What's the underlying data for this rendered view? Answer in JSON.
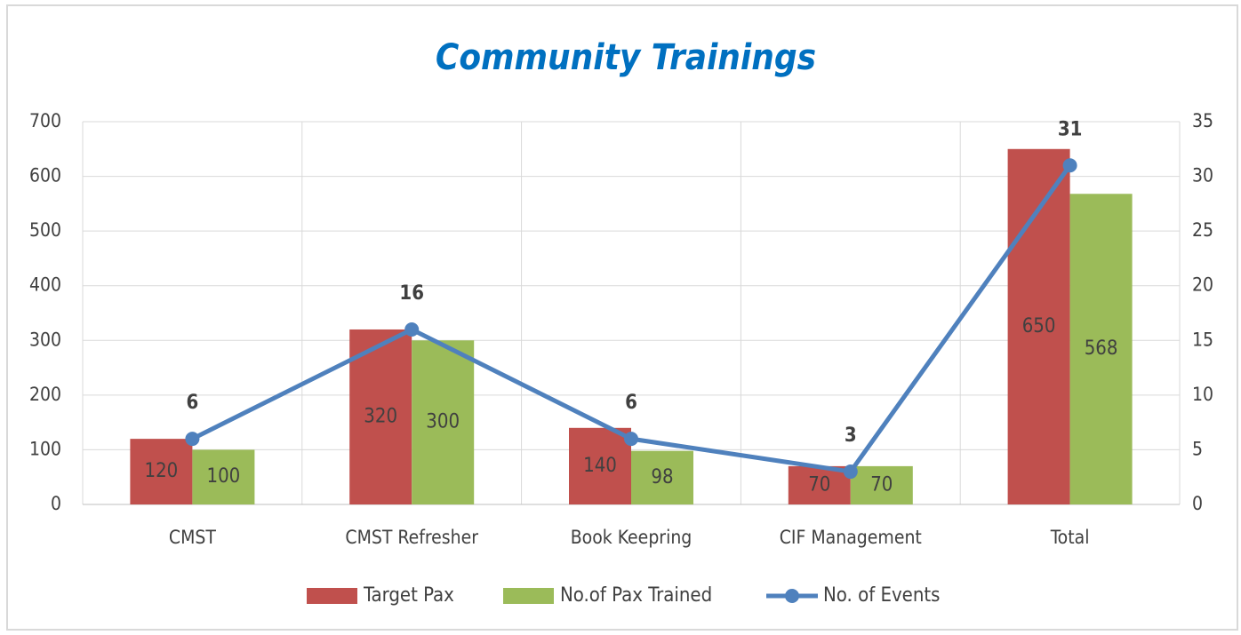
{
  "chart_data": {
    "type": "bar",
    "title": "Community Trainings",
    "categories": [
      "CMST",
      "CMST Refresher",
      "Book Keepring",
      "CIF Management",
      "Total"
    ],
    "series": [
      {
        "name": "Target Pax",
        "color": "#c0504d",
        "values": [
          120,
          320,
          140,
          70,
          650
        ]
      },
      {
        "name": "No.of Pax Trained",
        "color": "#9bbb59",
        "values": [
          100,
          300,
          98,
          70,
          568
        ]
      },
      {
        "name": "No. of Events",
        "color": "#4f81bd",
        "type": "line",
        "axis": "y2",
        "values": [
          6,
          16,
          6,
          3,
          31
        ]
      }
    ],
    "ylim": [
      0,
      700
    ],
    "yticks": [
      0,
      100,
      200,
      300,
      400,
      500,
      600,
      700
    ],
    "y2lim": [
      0,
      35
    ],
    "y2ticks": [
      0,
      5,
      10,
      15,
      20,
      25,
      30,
      35
    ],
    "grid": true,
    "data_labels": true,
    "legend": "bottom"
  }
}
